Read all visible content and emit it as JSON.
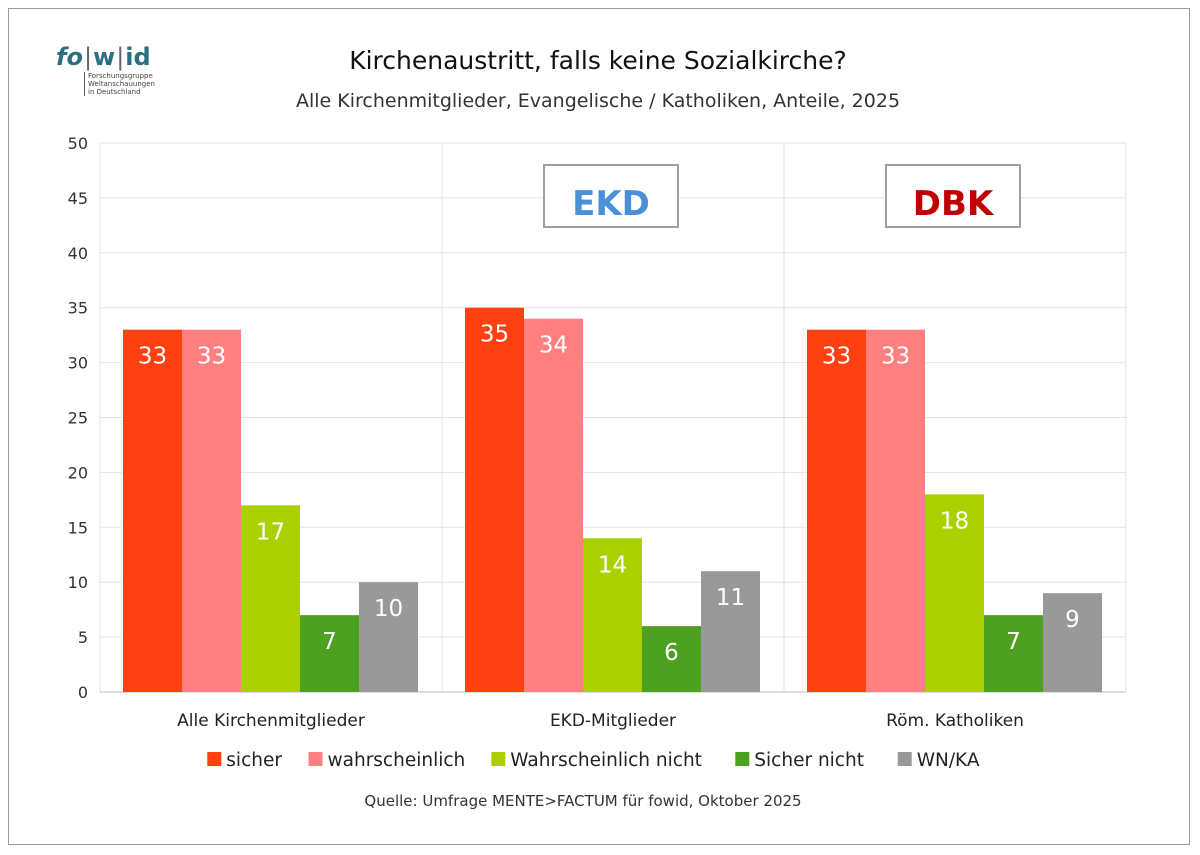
{
  "logo": {
    "word_a": "fo",
    "word_b": "w",
    "word_c": "id",
    "sub_lines": [
      "Forschungsgruppe",
      "Weltanschauungen",
      "in Deutschland"
    ]
  },
  "header": {
    "title": "Kirchenaustritt, falls keine Sozialkirche?",
    "subtitle": "Alle Kirchenmitglieder, Evangelische / Katholiken, Anteile, 2025"
  },
  "badges": [
    {
      "label": "EKD",
      "color": "#4a90d9"
    },
    {
      "label": "DBK",
      "color": "#c00000"
    }
  ],
  "source": "Quelle: Umfrage MENTE>FACTUM für fowid, Oktober 2025",
  "chart_data": {
    "type": "bar",
    "title": "Kirchenaustritt, falls keine Sozialkirche?",
    "xlabel": "",
    "ylabel": "",
    "ylim": [
      0,
      50
    ],
    "yticks": [
      0,
      5,
      10,
      15,
      20,
      25,
      30,
      35,
      40,
      45,
      50
    ],
    "grid": true,
    "legend_position": "bottom",
    "categories": [
      "Alle Kirchenmitglieder",
      "EKD-Mitglieder",
      "Röm. Katholiken"
    ],
    "series": [
      {
        "name": "sicher",
        "color": "#ff4010",
        "values": [
          33,
          35,
          33
        ]
      },
      {
        "name": "wahrscheinlich",
        "color": "#ff8080",
        "values": [
          33,
          34,
          33
        ]
      },
      {
        "name": "Wahrscheinlich nicht",
        "color": "#aad000",
        "values": [
          17,
          14,
          18
        ]
      },
      {
        "name": "Sicher nicht",
        "color": "#4ea020",
        "values": [
          7,
          6,
          7
        ]
      },
      {
        "name": "WN/KA",
        "color": "#999999",
        "values": [
          10,
          11,
          9
        ]
      }
    ]
  }
}
